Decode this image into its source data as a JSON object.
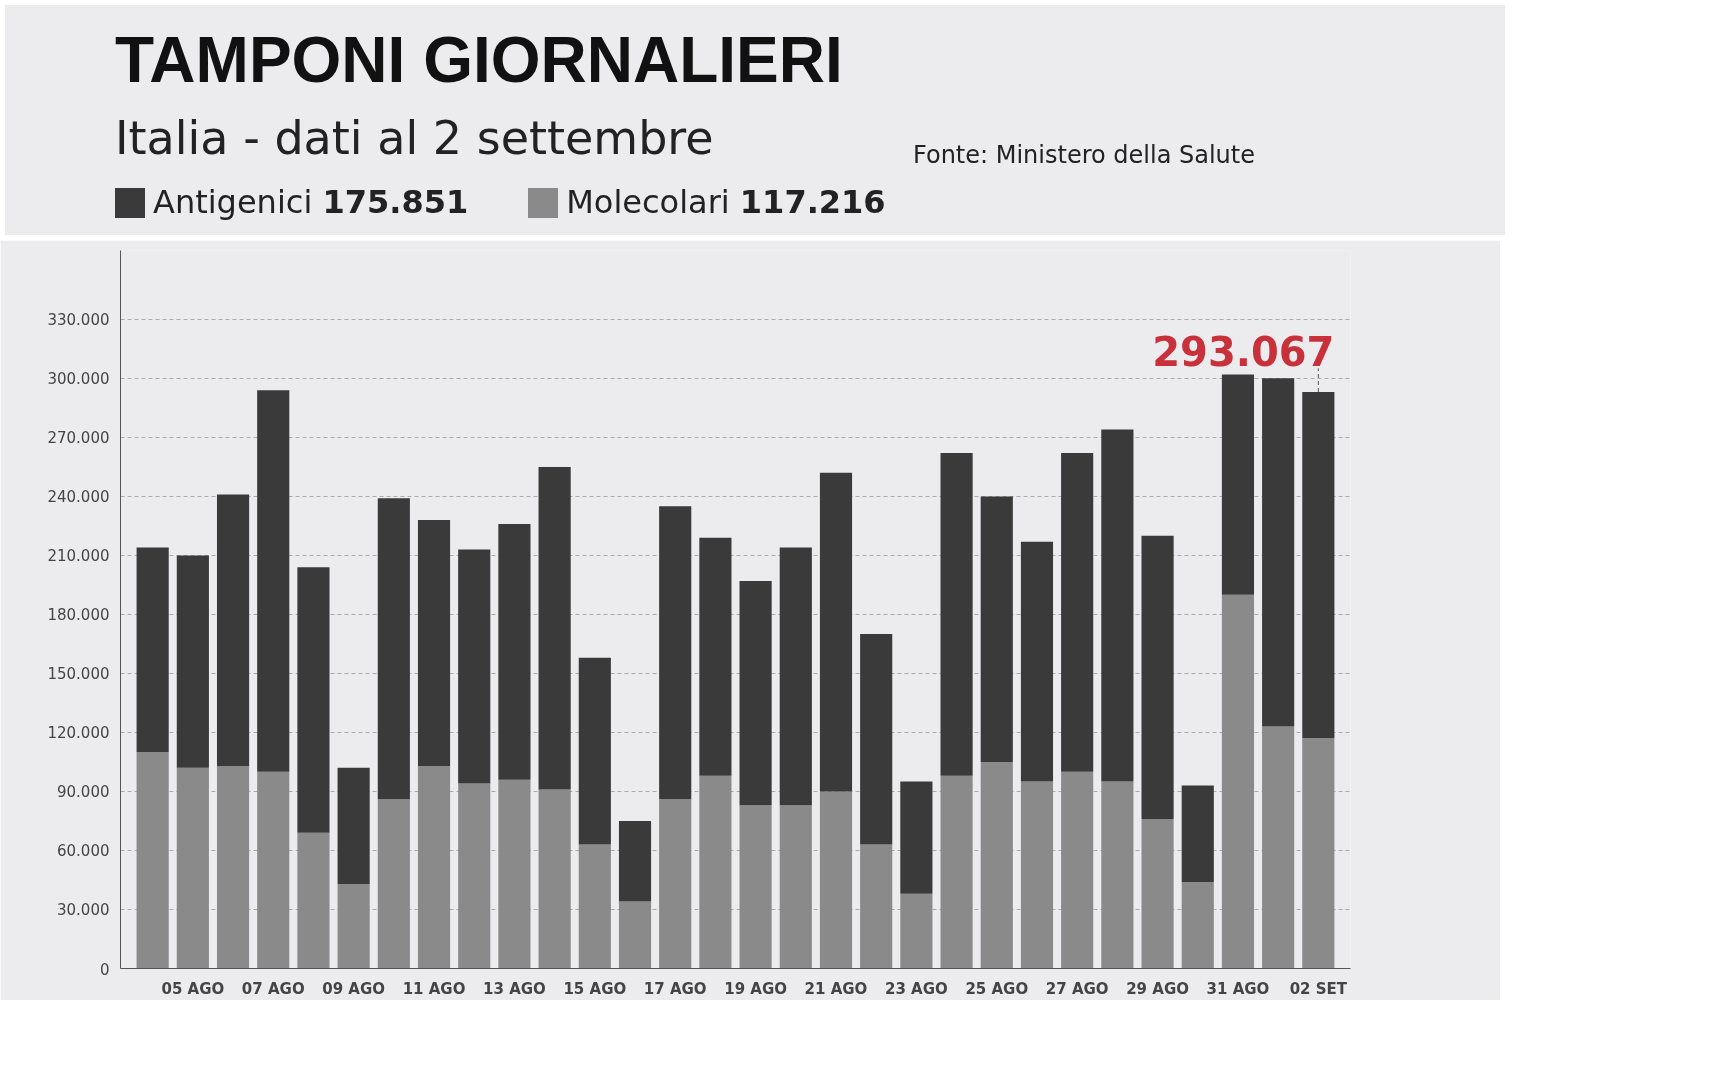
{
  "chart_data": {
    "type": "bar",
    "title": "TAMPONI GIORNALIERI",
    "subtitle": "Italia - dati al 2 settembre",
    "categories": [
      null,
      "05 AGO",
      null,
      "07 AGO",
      null,
      "09 AGO",
      null,
      "11 AGO",
      null,
      "13 AGO",
      null,
      "15 AGO",
      null,
      "17 AGO",
      null,
      "19 AGO",
      null,
      "21 AGO",
      null,
      "23 AGO",
      null,
      "25 AGO",
      null,
      "27 AGO",
      null,
      "29 AGO",
      null,
      "31 AGO",
      null,
      "02 SET"
    ],
    "stacked": true,
    "series": [
      {
        "name": "Molecolari 117.216",
        "color": "#8a8a8a",
        "values": [
          110000,
          102000,
          103000,
          100000,
          69000,
          43000,
          86000,
          103000,
          94000,
          96000,
          91000,
          63000,
          34000,
          86000,
          98000,
          83000,
          83000,
          90000,
          63000,
          38000,
          98000,
          105000,
          95000,
          100000,
          95000,
          76000,
          44000,
          190000,
          123000,
          117216
        ]
      },
      {
        "name": "Antigenici 175.851",
        "color": "#3a3a3a",
        "values": [
          104000,
          108000,
          138000,
          194000,
          135000,
          59000,
          153000,
          125000,
          119000,
          130000,
          164000,
          95000,
          41000,
          149000,
          121000,
          114000,
          131000,
          162000,
          107000,
          57000,
          164000,
          135000,
          122000,
          162000,
          179000,
          144000,
          49000,
          112000,
          177000,
          175851
        ]
      }
    ],
    "ylim": [
      0,
      365000
    ],
    "yticks": [
      {
        "value": 0,
        "label": "0"
      },
      {
        "value": 30000,
        "label": "30.000"
      },
      {
        "value": 60000,
        "label": "60.000"
      },
      {
        "value": 90000,
        "label": "90.000"
      },
      {
        "value": 120000,
        "label": "120.000"
      },
      {
        "value": 150000,
        "label": "150.000"
      },
      {
        "value": 180000,
        "label": "180.000"
      },
      {
        "value": 210000,
        "label": "210.000"
      },
      {
        "value": 240000,
        "label": "240.000"
      },
      {
        "value": 270000,
        "label": "270.000"
      },
      {
        "value": 300000,
        "label": "300.000"
      },
      {
        "value": 330000,
        "label": "330.000"
      }
    ],
    "grid": "y",
    "legend": "top left",
    "annotations": [
      "Fonte: Ministero della Salute",
      {
        "text": "293.067",
        "x": "02 SET",
        "y": 293067
      }
    ]
  }
}
